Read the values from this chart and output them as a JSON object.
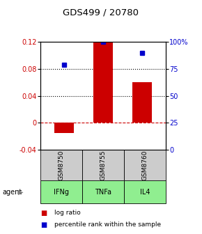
{
  "title": "GDS499 / 20780",
  "bar_positions": [
    0,
    1,
    2
  ],
  "bar_values": [
    -0.015,
    0.12,
    0.06
  ],
  "bar_color": "#cc0000",
  "percentile_values": [
    79,
    100,
    90
  ],
  "percentile_color": "#0000cc",
  "sample_labels": [
    "GSM8750",
    "GSM8755",
    "GSM8760"
  ],
  "agent_labels": [
    "IFNg",
    "TNFa",
    "IL4"
  ],
  "ylim_left": [
    -0.04,
    0.12
  ],
  "ylim_right": [
    0,
    100
  ],
  "yticks_left": [
    -0.04,
    0,
    0.04,
    0.08,
    0.12
  ],
  "yticks_right": [
    0,
    25,
    50,
    75,
    100
  ],
  "dotted_lines": [
    0.04,
    0.08
  ],
  "zero_line": 0.0,
  "bar_width": 0.5,
  "sample_box_color": "#cccccc",
  "agent_box_color": "#90EE90",
  "legend_items": [
    "log ratio",
    "percentile rank within the sample"
  ]
}
